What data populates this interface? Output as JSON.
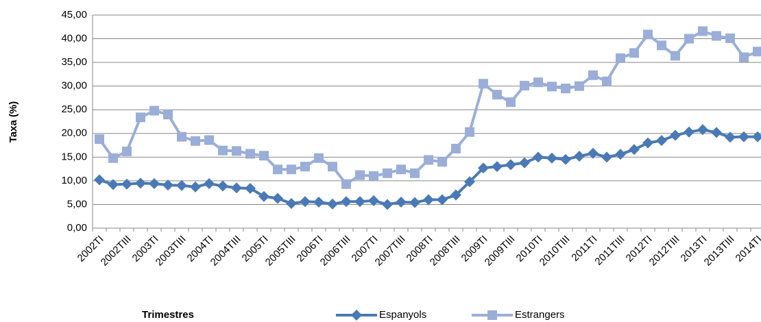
{
  "chart_data": {
    "type": "line",
    "categories": [
      "2002TI",
      null,
      "2002TIII",
      null,
      "2003TI",
      null,
      "2003TIII",
      null,
      "2004TI",
      null,
      "2004TIII",
      null,
      "2005TI",
      null,
      "2005TIII",
      null,
      "2006TI",
      null,
      "2006TIII",
      null,
      "2007TI",
      null,
      "2007TIII",
      null,
      "2008TI",
      null,
      "2008TIII",
      null,
      "2009TI",
      null,
      "2009TIII",
      null,
      "2010TI",
      null,
      "2010TIII",
      null,
      "2011TI",
      null,
      "2011TIII",
      null,
      "2012TI",
      null,
      "2012TIII",
      null,
      "2013TI",
      null,
      "2013TIII",
      null,
      "2014TI"
    ],
    "x_label": "Trimestres",
    "y_label": "Taxa (%)",
    "series": [
      {
        "name": "Espanyols",
        "color": "#4a7ab5",
        "marker": "diamond",
        "values": [
          10.2,
          9.2,
          9.3,
          9.5,
          9.4,
          9.1,
          9.0,
          8.7,
          9.4,
          8.9,
          8.5,
          8.4,
          6.7,
          6.3,
          5.2,
          5.6,
          5.5,
          5.1,
          5.6,
          5.6,
          5.8,
          5.0,
          5.5,
          5.4,
          6.0,
          6.0,
          7.0,
          9.8,
          12.7,
          13.0,
          13.4,
          13.8,
          15.0,
          14.8,
          14.5,
          15.2,
          15.8,
          15.0,
          15.6,
          16.6,
          18.0,
          18.5,
          19.6,
          20.3,
          20.8,
          20.2,
          19.2,
          19.3,
          19.3
        ]
      },
      {
        "name": "Estrangers",
        "color": "#9aaed8",
        "marker": "square",
        "values": [
          18.8,
          14.8,
          16.2,
          23.4,
          24.8,
          24.0,
          19.3,
          18.4,
          18.6,
          16.4,
          16.3,
          15.7,
          15.3,
          12.4,
          12.4,
          13.0,
          14.8,
          13.0,
          9.3,
          11.2,
          11.0,
          11.6,
          12.4,
          11.6,
          14.4,
          14.0,
          16.8,
          20.3,
          30.5,
          28.2,
          26.6,
          30.1,
          30.8,
          29.9,
          29.5,
          30.0,
          32.3,
          31.0,
          35.9,
          37.0,
          40.9,
          38.6,
          36.4,
          40.0,
          41.6,
          40.6,
          40.1,
          36.1,
          37.3
        ]
      }
    ],
    "ylim": [
      0,
      45
    ],
    "yticks": [
      {
        "value": 0,
        "label": "0,00"
      },
      {
        "value": 5,
        "label": "5,00"
      },
      {
        "value": 10,
        "label": "10,00"
      },
      {
        "value": 15,
        "label": "15,00"
      },
      {
        "value": 20,
        "label": "20,00"
      },
      {
        "value": 25,
        "label": "25,00"
      },
      {
        "value": 30,
        "label": "30,00"
      },
      {
        "value": 35,
        "label": "35,00"
      },
      {
        "value": 40,
        "label": "40,00"
      },
      {
        "value": 45,
        "label": "45,00"
      }
    ],
    "grid": true
  }
}
